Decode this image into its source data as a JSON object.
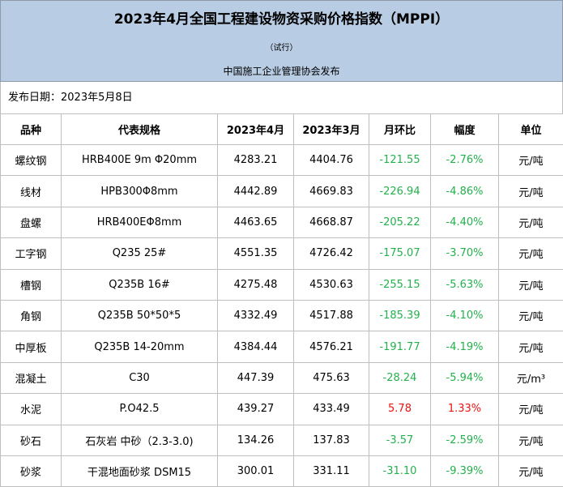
{
  "header": {
    "title": "2023年4月全国工程建设物资采购价格指数（MPPI）",
    "subtitle": "（试行）",
    "publisher": "中国施工企业管理协会发布"
  },
  "date": "发布日期：2023年5月8日",
  "table": {
    "columns": [
      "品种",
      "代表规格",
      "2023年4月",
      "2023年3月",
      "月环比",
      "幅度",
      "单位"
    ],
    "rows": [
      [
        "螺纹钢",
        "HRB400E 9m Φ20mm",
        "4283.21",
        "4404.76",
        "-121.55",
        "-2.76%",
        "元/吨"
      ],
      [
        "线材",
        "HPB300Φ8mm",
        "4442.89",
        "4669.83",
        "-226.94",
        "-4.86%",
        "元/吨"
      ],
      [
        "盘螺",
        "HRB400EΦ8mm",
        "4463.65",
        "4668.87",
        "-205.22",
        "-4.40%",
        "元/吨"
      ],
      [
        "工字钢",
        "Q235 25#",
        "4551.35",
        "4726.42",
        "-175.07",
        "-3.70%",
        "元/吨"
      ],
      [
        "槽钢",
        "Q235B 16#",
        "4275.48",
        "4530.63",
        "-255.15",
        "-5.63%",
        "元/吨"
      ],
      [
        "角钢",
        "Q235B 50*50*5",
        "4332.49",
        "4517.88",
        "-185.39",
        "-4.10%",
        "元/吨"
      ],
      [
        "中厚板",
        "Q235B 14-20mm",
        "4384.44",
        "4576.21",
        "-191.77",
        "-4.19%",
        "元/吨"
      ],
      [
        "混凝土",
        "C30",
        "447.39",
        "475.63",
        "-28.24",
        "-5.94%",
        "元/m³"
      ],
      [
        "水泥",
        "P.O42.5",
        "439.27",
        "433.49",
        "5.78",
        "1.33%",
        "元/吨"
      ],
      [
        "砂石",
        "石灰岩 中砂（2.3-3.0)",
        "134.26",
        "137.83",
        "-3.57",
        "-2.59%",
        "元/吨"
      ],
      [
        "砂浆",
        "干混地面砂浆 DSM15",
        "300.01",
        "331.11",
        "-31.10",
        "-9.39%",
        "元/吨"
      ]
    ]
  }
}
